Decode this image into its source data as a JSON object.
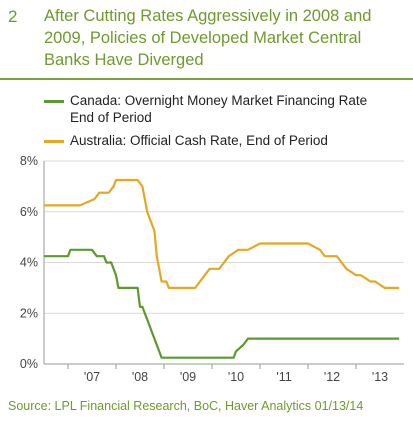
{
  "header": {
    "figure_number": "2",
    "title_lines": [
      "After Cutting Rates Aggressively in 2008 and",
      "2009, Policies of Developed Market Central",
      "Banks Have Diverged"
    ]
  },
  "legend": {
    "items": [
      {
        "lines": [
          "Canada: Overnight Money Market Financing Rate",
          "End of Period"
        ],
        "color": "#5a9a2e"
      },
      {
        "lines": [
          "Australia: Official Cash Rate, End of Period"
        ],
        "color": "#e5a823"
      }
    ]
  },
  "footer": {
    "source": "Source: LPL Financial Research, BoC, Haver Analytics   01/13/14"
  },
  "chart_data": {
    "type": "line",
    "ylim": [
      0,
      8
    ],
    "xlim": [
      2006.5,
      2014.0
    ],
    "y_ticks": [
      0,
      2,
      4,
      6,
      8
    ],
    "y_tick_labels": [
      "0%",
      "2%",
      "4%",
      "6%",
      "8%"
    ],
    "x_ticks": [
      2007.5,
      2008.5,
      2009.5,
      2010.5,
      2011.5,
      2012.5,
      2013.5
    ],
    "x_tick_labels": [
      "'07",
      "'08",
      "'09",
      "'10",
      "'11",
      "'12",
      "'13"
    ],
    "series": [
      {
        "name": "Canada: Overnight Money Market Financing Rate End of Period",
        "color": "#5a9a2e",
        "x": [
          2006.5,
          2007.0,
          2007.05,
          2007.5,
          2007.6,
          2007.75,
          2007.8,
          2007.9,
          2008.0,
          2008.05,
          2008.3,
          2008.45,
          2008.5,
          2008.55,
          2008.7,
          2008.8,
          2008.85,
          2008.95,
          2009.0,
          2009.1,
          2009.15,
          2009.3,
          2009.5,
          2010.0,
          2010.3,
          2010.45,
          2010.5,
          2010.65,
          2010.75,
          2011.0,
          2012.0,
          2013.0,
          2013.9
        ],
        "y": [
          4.25,
          4.25,
          4.5,
          4.5,
          4.25,
          4.25,
          4.0,
          4.0,
          3.5,
          3.0,
          3.0,
          3.0,
          2.25,
          2.25,
          1.5,
          1.0,
          0.75,
          0.25,
          0.25,
          0.25,
          0.25,
          0.25,
          0.25,
          0.25,
          0.25,
          0.25,
          0.5,
          0.75,
          1.0,
          1.0,
          1.0,
          1.0,
          1.0
        ]
      },
      {
        "name": "Australia: Official Cash Rate, End of Period",
        "color": "#e5a823",
        "x": [
          2006.5,
          2007.0,
          2007.1,
          2007.25,
          2007.55,
          2007.65,
          2007.75,
          2007.85,
          2007.95,
          2008.0,
          2008.1,
          2008.45,
          2008.55,
          2008.65,
          2008.8,
          2008.85,
          2008.95,
          2009.05,
          2009.1,
          2009.3,
          2009.5,
          2009.65,
          2009.75,
          2009.85,
          2009.95,
          2010.05,
          2010.15,
          2010.35,
          2010.55,
          2010.75,
          2011.0,
          2011.5,
          2011.75,
          2011.85,
          2012.0,
          2012.25,
          2012.35,
          2012.5,
          2012.6,
          2012.8,
          2013.0,
          2013.1,
          2013.3,
          2013.4,
          2013.6,
          2013.9
        ],
        "y": [
          6.25,
          6.25,
          6.25,
          6.25,
          6.5,
          6.75,
          6.75,
          6.75,
          7.0,
          7.25,
          7.25,
          7.25,
          7.0,
          6.0,
          5.25,
          4.25,
          3.25,
          3.25,
          3.0,
          3.0,
          3.0,
          3.0,
          3.25,
          3.5,
          3.75,
          3.75,
          3.75,
          4.25,
          4.5,
          4.5,
          4.75,
          4.75,
          4.75,
          4.75,
          4.75,
          4.5,
          4.25,
          4.25,
          4.25,
          3.75,
          3.5,
          3.5,
          3.25,
          3.25,
          3.0,
          3.0
        ]
      }
    ]
  }
}
